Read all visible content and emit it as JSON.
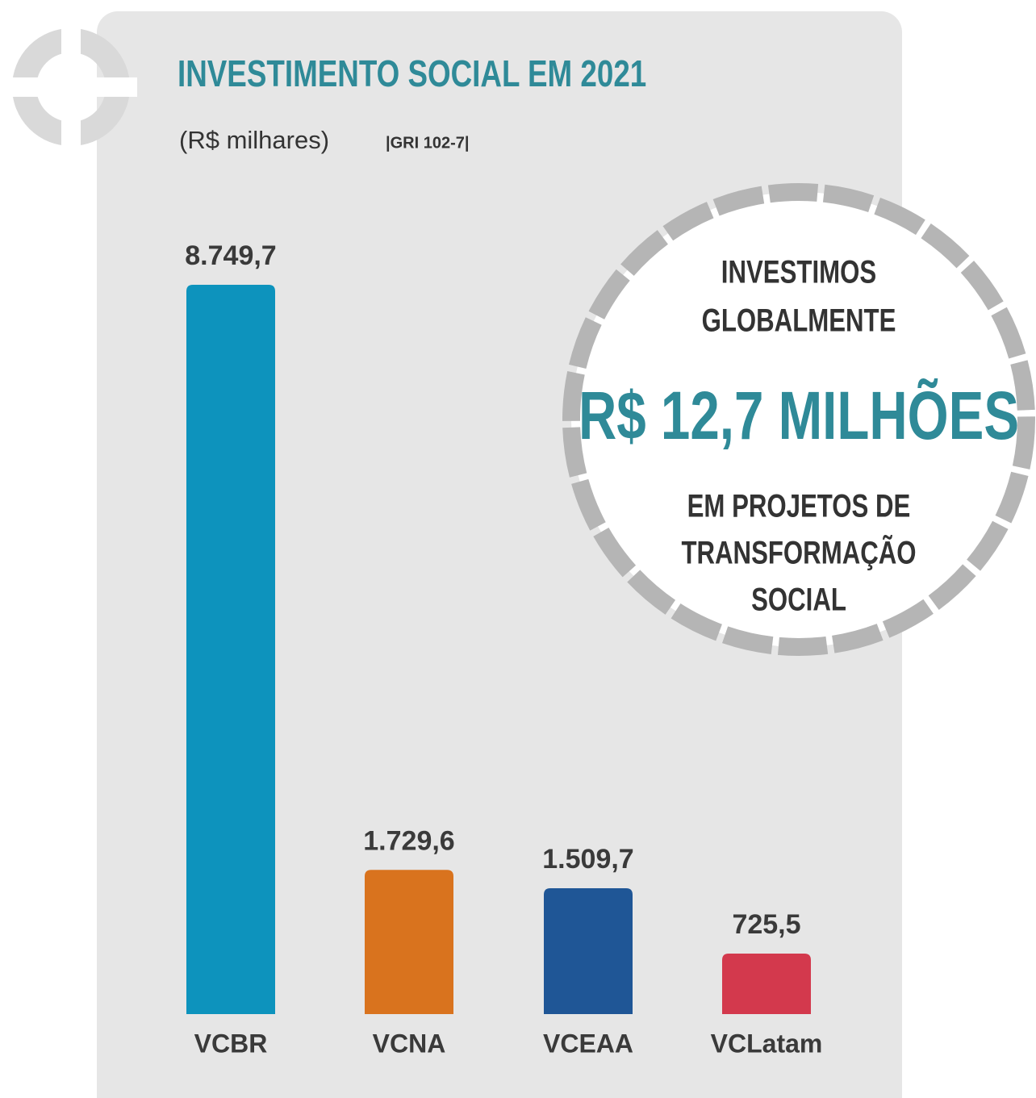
{
  "chart_data": {
    "type": "bar",
    "title": "INVESTIMENTO SOCIAL EM 2021",
    "subtitle": "(R$ milhares)",
    "reference": "|GRI 102-7|",
    "categories": [
      "VCBR",
      "VCNA",
      "VCEAA",
      "VCLatam"
    ],
    "values": [
      8749.7,
      1729.6,
      1509.7,
      725.5
    ],
    "value_labels": [
      "8.749,7",
      "1.729,6",
      "1.509,7",
      "725,5"
    ],
    "colors": [
      "#0d93bd",
      "#d9731e",
      "#1f5696",
      "#d3394d"
    ],
    "callout": {
      "intro": [
        "INVESTIMOS",
        "GLOBALMENTE"
      ],
      "highlight": "R$ 12,7 MILHÕES",
      "outro": [
        "EM PROJETOS DE",
        "TRANSFORMAÇÃO",
        "SOCIAL"
      ]
    }
  }
}
